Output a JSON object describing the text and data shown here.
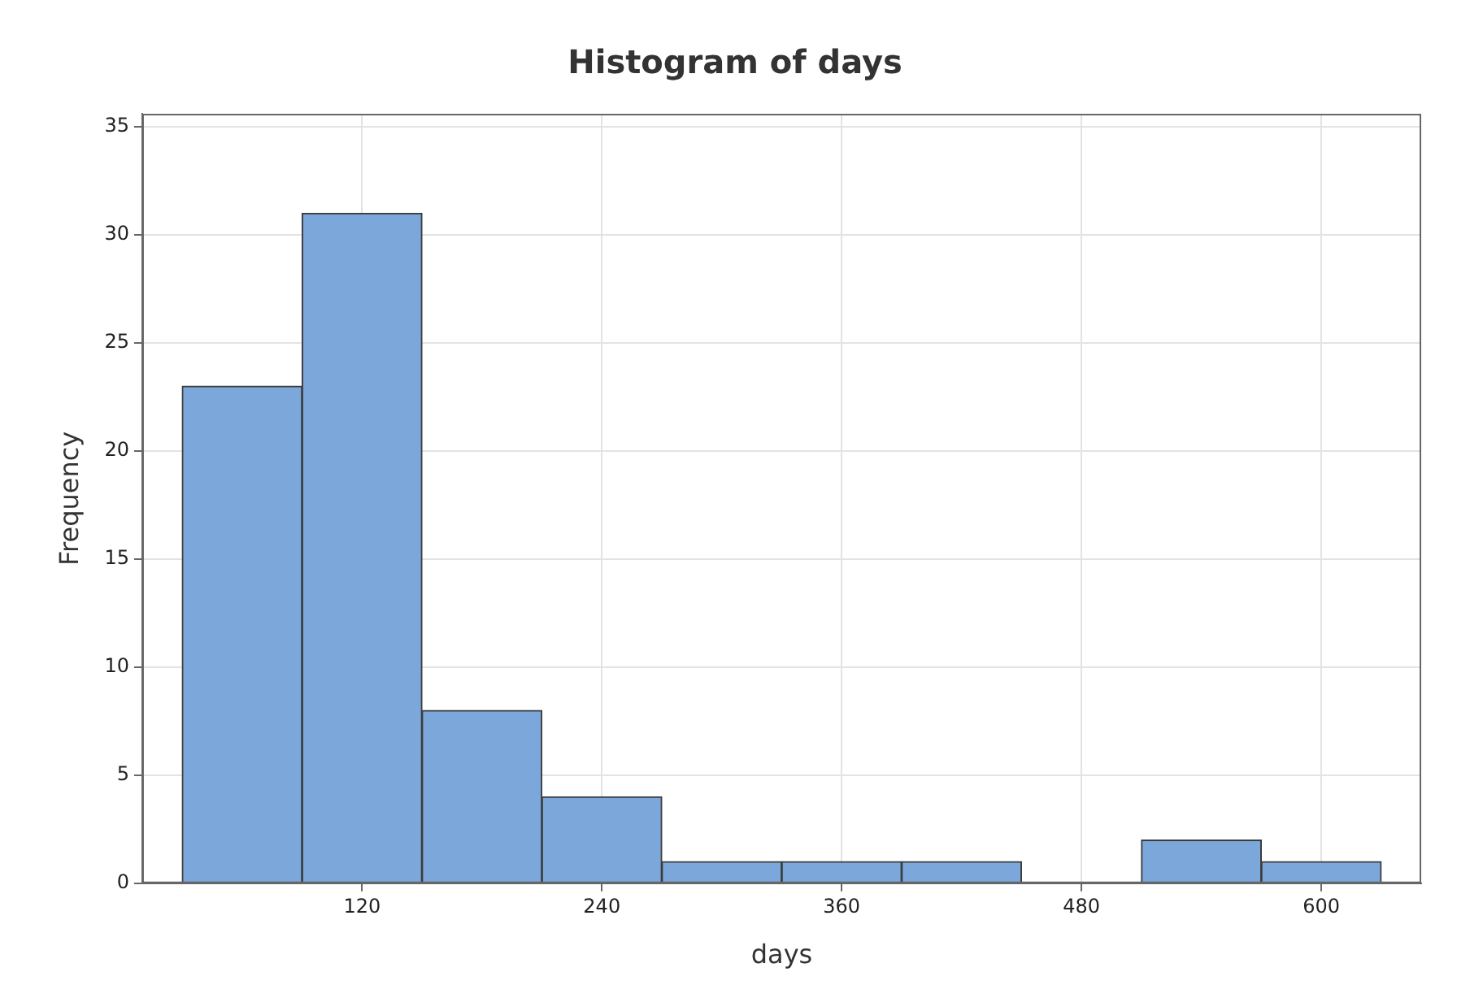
{
  "chart_data": {
    "type": "histogram",
    "title": "Histogram of days",
    "xlabel": "days",
    "ylabel": "Frequency",
    "bins": [
      30,
      90,
      150,
      210,
      270,
      330,
      390,
      450,
      510,
      570,
      630
    ],
    "values": [
      23,
      31,
      8,
      4,
      1,
      1,
      1,
      0,
      2,
      1
    ],
    "color": "#7ba7db",
    "xlim": [
      10,
      650
    ],
    "xticks": [
      120,
      240,
      360,
      480,
      600
    ],
    "ylim": [
      0,
      35.6
    ],
    "yticks": [
      0,
      5,
      10,
      15,
      20,
      25,
      30,
      35
    ],
    "grid": true,
    "legend": false
  }
}
